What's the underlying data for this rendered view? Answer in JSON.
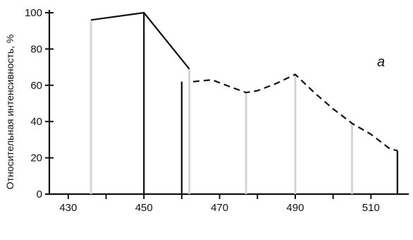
{
  "chart_data": {
    "type": "line",
    "ylabel": "Относительная интенсивность, %",
    "panel_label": "a",
    "xlim": [
      425,
      520
    ],
    "ylim": [
      0,
      100
    ],
    "x_ticks": [
      430,
      450,
      470,
      490,
      510
    ],
    "y_ticks": [
      0,
      20,
      40,
      60,
      80,
      100
    ],
    "grid": false,
    "series": [
      {
        "style": "solid",
        "points": [
          [
            436,
            96
          ],
          [
            450,
            100
          ],
          [
            462,
            69
          ]
        ]
      },
      {
        "style": "dashed",
        "points": [
          [
            463,
            62
          ],
          [
            468,
            63
          ],
          [
            473,
            59
          ],
          [
            477,
            56
          ],
          [
            480,
            57
          ],
          [
            485,
            61
          ],
          [
            490,
            66
          ],
          [
            495,
            56
          ],
          [
            500,
            47
          ],
          [
            505,
            39
          ],
          [
            510,
            33
          ],
          [
            515,
            25
          ],
          [
            517,
            24
          ]
        ]
      }
    ],
    "lines": [
      {
        "x": 436,
        "y": 96,
        "style": "light"
      },
      {
        "x": 450,
        "y": 100,
        "style": "dark"
      },
      {
        "x": 460,
        "y": 62,
        "style": "dark"
      },
      {
        "x": 462,
        "y": 69,
        "style": "light"
      },
      {
        "x": 477,
        "y": 56,
        "style": "light"
      },
      {
        "x": 490,
        "y": 66,
        "style": "light"
      },
      {
        "x": 505,
        "y": 39,
        "style": "light"
      },
      {
        "x": 517,
        "y": 24,
        "style": "dark"
      }
    ],
    "colors": {
      "ink": "#111111",
      "faint_line": "#d4d4d4",
      "dark_line": "#1a1a1a"
    }
  }
}
